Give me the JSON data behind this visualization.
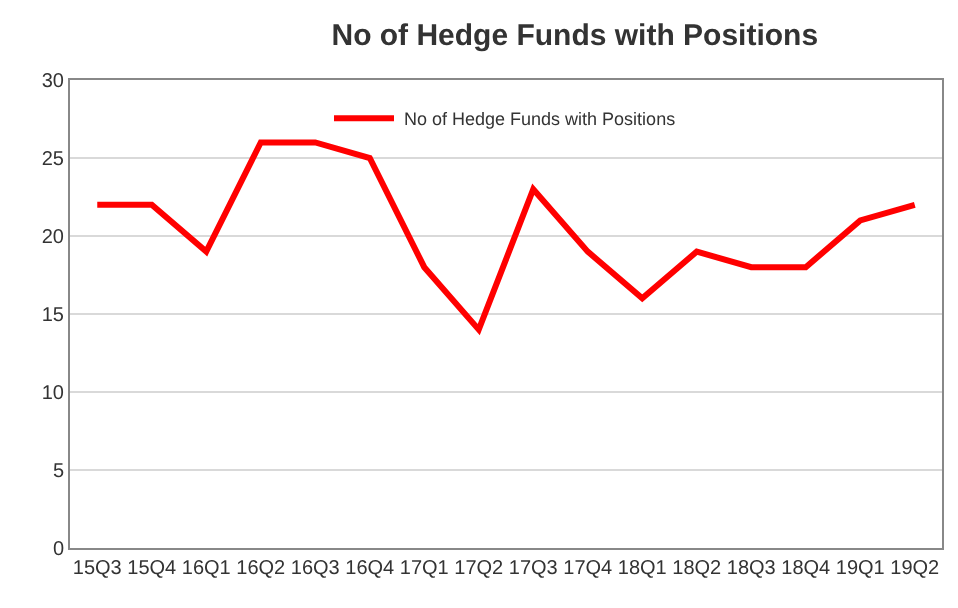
{
  "chart_data": {
    "type": "line",
    "title": "No of Hedge Funds with Positions",
    "categories": [
      "15Q3",
      "15Q4",
      "16Q1",
      "16Q2",
      "16Q3",
      "16Q4",
      "17Q1",
      "17Q2",
      "17Q3",
      "17Q4",
      "18Q1",
      "18Q2",
      "18Q3",
      "18Q4",
      "19Q1",
      "19Q2"
    ],
    "series": [
      {
        "name": "No of Hedge Funds with Positions",
        "color": "#ff0000",
        "values": [
          22,
          22,
          19,
          26,
          26,
          25,
          18,
          14,
          23,
          19,
          16,
          19,
          18,
          18,
          21,
          22
        ]
      }
    ],
    "ylim": [
      0,
      30
    ],
    "yticks": [
      0,
      5,
      10,
      15,
      20,
      25,
      30
    ],
    "grid": "y",
    "legend": "top",
    "marker": "none",
    "line_style": "solid"
  }
}
